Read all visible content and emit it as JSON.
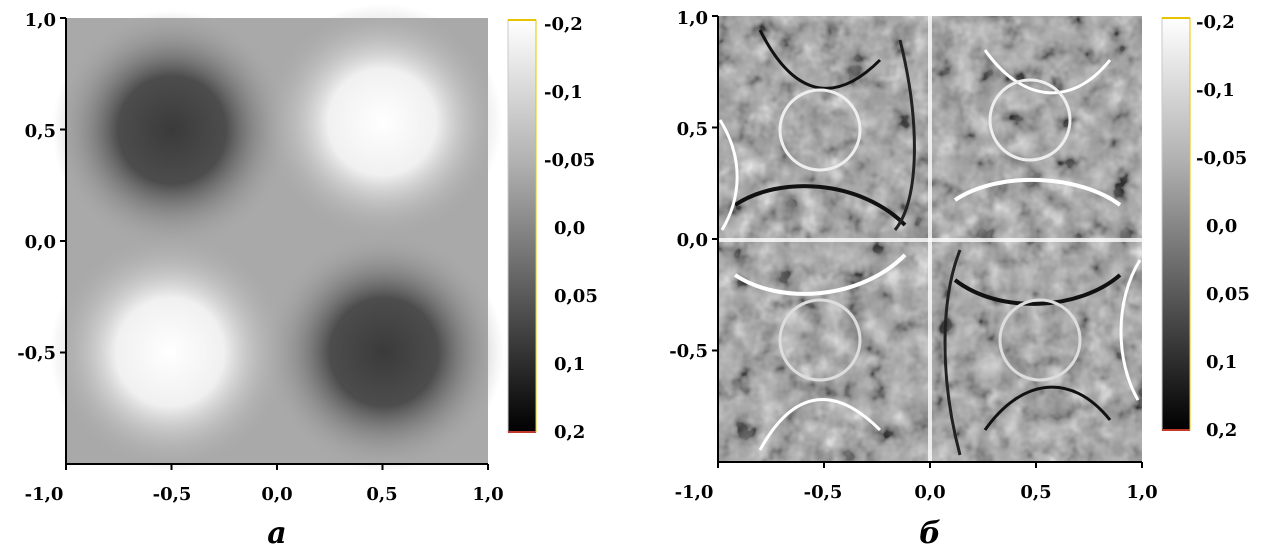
{
  "chart_data": [
    {
      "type": "heatmap",
      "panel_label": "а",
      "xlim": [
        -1.0,
        1.0
      ],
      "ylim": [
        -1.0,
        1.0
      ],
      "x_ticks": [
        "-1,0",
        "-0,5",
        "0,0",
        "0,5",
        "1,0"
      ],
      "y_ticks": [
        "1,0",
        "0,5",
        "0,0",
        "-0,5"
      ],
      "x_tick_values": [
        -1.0,
        -0.5,
        0.0,
        0.5,
        1.0
      ],
      "y_tick_values": [
        1.0,
        0.5,
        0.0,
        -0.5
      ],
      "colorbar": {
        "labels": [
          "-0,2",
          "-0,1",
          "-0,05",
          "0,0",
          "0,05",
          "0,1",
          "0,2"
        ],
        "values": [
          -0.2,
          -0.1,
          -0.05,
          0.0,
          0.05,
          0.1,
          0.2
        ],
        "colors": {
          "low": "#ffffff",
          "high": "#000000",
          "top_edge": "#e8c400",
          "bottom_edge": "#c0392b"
        }
      },
      "features": [
        {
          "x": -0.5,
          "y": 0.5,
          "value": 0.1
        },
        {
          "x": 0.5,
          "y": 0.5,
          "value": -0.1
        },
        {
          "x": -0.5,
          "y": -0.5,
          "value": -0.1
        },
        {
          "x": 0.5,
          "y": -0.5,
          "value": 0.1
        }
      ],
      "background_value": 0.0
    },
    {
      "type": "heatmap",
      "panel_label": "б",
      "xlim": [
        -1.0,
        1.0
      ],
      "ylim": [
        -1.0,
        1.0
      ],
      "x_ticks": [
        "-1,0",
        "-0,5",
        "0,0",
        "0,5",
        "1,0"
      ],
      "y_ticks": [
        "1,0",
        "0,5",
        "0,0",
        "-0,5"
      ],
      "x_tick_values": [
        -1.0,
        -0.5,
        0.0,
        0.5,
        1.0
      ],
      "y_tick_values": [
        1.0,
        0.5,
        0.0,
        -0.5
      ],
      "colorbar": {
        "labels": [
          "-0,2",
          "-0,1",
          "-0,05",
          "0,0",
          "0,05",
          "0,1",
          "0,2"
        ],
        "values": [
          -0.2,
          -0.1,
          -0.05,
          0.0,
          0.05,
          0.1,
          0.2
        ],
        "colors": {
          "low": "#ffffff",
          "high": "#000000",
          "top_edge": "#e8c400",
          "bottom_edge": "#c0392b"
        }
      }
    }
  ]
}
